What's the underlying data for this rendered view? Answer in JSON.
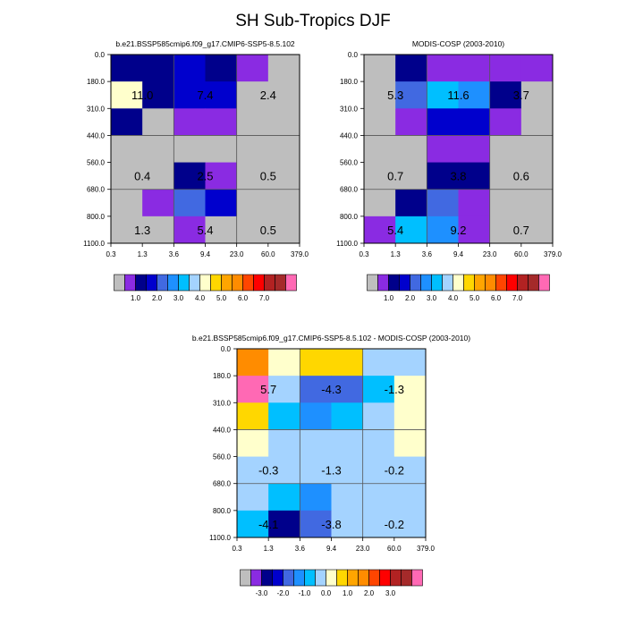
{
  "title": "SH Sub-Tropics DJF",
  "palettes": {
    "main": [
      "#BEBEBE",
      "#8A2BE2",
      "#00008B",
      "#0000CD",
      "#4169E1",
      "#1E90FF",
      "#00BFFF",
      "#A4D3FF",
      "#FFFFCC",
      "#FFD700",
      "#FFA500",
      "#FF8C00",
      "#FF4500",
      "#FF0000",
      "#B22222",
      "#A52A2A",
      "#FF69B4"
    ],
    "diff": [
      "#BEBEBE",
      "#8A2BE2",
      "#00008B",
      "#0000CD",
      "#4169E1",
      "#1E90FF",
      "#00BFFF",
      "#A4D3FF",
      "#FFFFCC",
      "#FFD700",
      "#FFA500",
      "#FF8C00",
      "#FF4500",
      "#FF0000",
      "#B22222",
      "#A52A2A",
      "#FF69B4"
    ]
  },
  "chart_data": [
    {
      "type": "heatmap",
      "title": "b.e21.BSSP585cmip6.f09_g17.CMIP6-SSP5-8.5.102",
      "x_ticks": [
        "0.3",
        "1.3",
        "3.6",
        "9.4",
        "23.0",
        "60.0",
        "379.0"
      ],
      "y_ticks": [
        "0.0",
        "180.0",
        "310.0",
        "440.0",
        "560.0",
        "680.0",
        "800.0",
        "1100.0"
      ],
      "cells": [
        [
          2,
          2,
          3,
          2,
          1,
          0
        ],
        [
          8,
          2,
          3,
          3,
          0,
          0
        ],
        [
          2,
          0,
          1,
          1,
          0,
          0
        ],
        [
          0,
          0,
          0,
          0,
          0,
          0
        ],
        [
          0,
          0,
          2,
          1,
          0,
          0
        ],
        [
          0,
          1,
          4,
          3,
          0,
          0
        ],
        [
          0,
          0,
          1,
          0,
          0,
          0
        ]
      ],
      "annotations": [
        {
          "row": 1,
          "col": 0,
          "text": "11.0"
        },
        {
          "row": 1,
          "col": 2,
          "text": "7.4"
        },
        {
          "row": 1,
          "col": 4,
          "text": "2.4"
        },
        {
          "row": 4,
          "col": 0,
          "text": "0.4"
        },
        {
          "row": 4,
          "col": 2,
          "text": "2.5"
        },
        {
          "row": 4,
          "col": 4,
          "text": "0.5"
        },
        {
          "row": 6,
          "col": 0,
          "text": "1.3"
        },
        {
          "row": 6,
          "col": 2,
          "text": "5.4"
        },
        {
          "row": 6,
          "col": 4,
          "text": "0.5"
        }
      ],
      "colorbar_palette": "main",
      "colorbar_labels": [
        "1.0",
        "2.0",
        "3.0",
        "4.0",
        "5.0",
        "6.0",
        "7.0"
      ]
    },
    {
      "type": "heatmap",
      "title": "MODIS-COSP (2003-2010)",
      "x_ticks": [
        "0.3",
        "1.3",
        "3.6",
        "9.4",
        "23.0",
        "60.0",
        "379.0"
      ],
      "y_ticks": [
        "0.0",
        "180.0",
        "310.0",
        "440.0",
        "560.0",
        "680.0",
        "800.0",
        "1100.0"
      ],
      "cells": [
        [
          0,
          2,
          1,
          1,
          1,
          1
        ],
        [
          0,
          4,
          6,
          5,
          2,
          0
        ],
        [
          0,
          1,
          3,
          3,
          1,
          0
        ],
        [
          0,
          0,
          1,
          1,
          0,
          0
        ],
        [
          0,
          0,
          2,
          2,
          0,
          0
        ],
        [
          0,
          2,
          4,
          1,
          0,
          0
        ],
        [
          1,
          6,
          5,
          1,
          0,
          0
        ]
      ],
      "annotations": [
        {
          "row": 1,
          "col": 0,
          "text": "5.3"
        },
        {
          "row": 1,
          "col": 2,
          "text": "11.6"
        },
        {
          "row": 1,
          "col": 4,
          "text": "3.7"
        },
        {
          "row": 4,
          "col": 0,
          "text": "0.7"
        },
        {
          "row": 4,
          "col": 2,
          "text": "3.8"
        },
        {
          "row": 4,
          "col": 4,
          "text": "0.6"
        },
        {
          "row": 6,
          "col": 0,
          "text": "5.4"
        },
        {
          "row": 6,
          "col": 2,
          "text": "9.2"
        },
        {
          "row": 6,
          "col": 4,
          "text": "0.7"
        }
      ],
      "colorbar_palette": "main",
      "colorbar_labels": [
        "1.0",
        "2.0",
        "3.0",
        "4.0",
        "5.0",
        "6.0",
        "7.0"
      ]
    },
    {
      "type": "heatmap",
      "title": "b.e21.BSSP585cmip6.f09_g17.CMIP6-SSP5-8.5.102 - MODIS-COSP (2003-2010)",
      "x_ticks": [
        "0.3",
        "1.3",
        "3.6",
        "9.4",
        "23.0",
        "60.0",
        "379.0"
      ],
      "y_ticks": [
        "0.0",
        "180.0",
        "310.0",
        "440.0",
        "560.0",
        "680.0",
        "800.0",
        "1100.0"
      ],
      "cells": [
        [
          11,
          8,
          9,
          9,
          7,
          7
        ],
        [
          16,
          7,
          4,
          4,
          6,
          8
        ],
        [
          9,
          6,
          5,
          6,
          7,
          8
        ],
        [
          8,
          7,
          7,
          7,
          7,
          8
        ],
        [
          7,
          7,
          7,
          7,
          7,
          7
        ],
        [
          7,
          6,
          5,
          7,
          7,
          7
        ],
        [
          6,
          2,
          4,
          7,
          7,
          7
        ]
      ],
      "annotations": [
        {
          "row": 1,
          "col": 0,
          "text": "5.7"
        },
        {
          "row": 1,
          "col": 2,
          "text": "-4.3"
        },
        {
          "row": 1,
          "col": 4,
          "text": "-1.3"
        },
        {
          "row": 4,
          "col": 0,
          "text": "-0.3"
        },
        {
          "row": 4,
          "col": 2,
          "text": "-1.3"
        },
        {
          "row": 4,
          "col": 4,
          "text": "-0.2"
        },
        {
          "row": 6,
          "col": 0,
          "text": "-4.1"
        },
        {
          "row": 6,
          "col": 2,
          "text": "-3.8"
        },
        {
          "row": 6,
          "col": 4,
          "text": "-0.2"
        }
      ],
      "colorbar_palette": "diff",
      "colorbar_labels": [
        "-3.0",
        "-2.0",
        "-1.0",
        "0.0",
        "1.0",
        "2.0",
        "3.0"
      ]
    }
  ]
}
